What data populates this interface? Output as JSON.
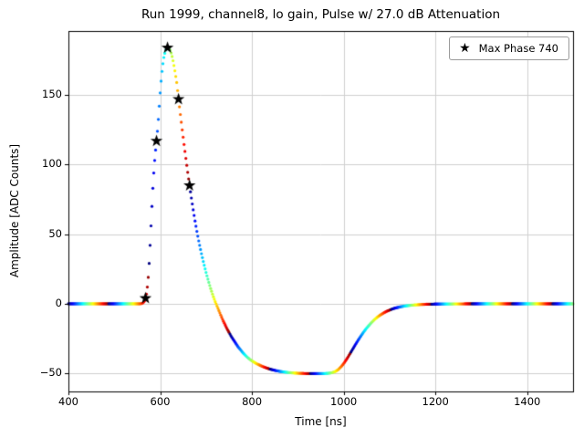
{
  "chart_data": {
    "type": "scatter",
    "title": "Run 1999, channel8, lo gain, Pulse w/ 27.0 dB Attenuation",
    "xlabel": "Time [ns]",
    "ylabel": "Amplitude [ADC Counts]",
    "xlim": [
      400,
      1500
    ],
    "ylim": [
      -63,
      196
    ],
    "xticks": [
      400,
      600,
      800,
      1000,
      1200,
      1400
    ],
    "yticks": [
      -50,
      0,
      50,
      100,
      150
    ],
    "grid": true,
    "grid_color": "#cfcfcf",
    "colormap": "jet-cycling",
    "sample_step_ns": 2,
    "color_cycle_period_samples": 44,
    "legend": [
      {
        "label": "Max Phase 740",
        "marker": "star",
        "color": "#000000"
      }
    ],
    "series": [
      {
        "name": "pulse-waveform",
        "style": "colored-dots",
        "keypoints": [
          [
            400,
            0
          ],
          [
            545,
            0
          ],
          [
            552,
            0
          ],
          [
            556,
            0
          ],
          [
            560,
            0.2
          ],
          [
            563,
            0.8
          ],
          [
            566,
            2
          ],
          [
            568,
            4
          ],
          [
            570,
            7
          ],
          [
            572,
            12
          ],
          [
            574,
            19
          ],
          [
            576,
            29
          ],
          [
            578,
            42
          ],
          [
            580,
            56
          ],
          [
            582,
            70
          ],
          [
            584,
            83
          ],
          [
            586,
            94
          ],
          [
            588,
            103
          ],
          [
            590,
            110.5
          ],
          [
            592,
            117
          ],
          [
            594,
            124
          ],
          [
            596,
            132.5
          ],
          [
            598,
            142
          ],
          [
            600,
            151.5
          ],
          [
            602,
            160
          ],
          [
            604,
            167
          ],
          [
            606,
            172.5
          ],
          [
            608,
            177
          ],
          [
            610,
            180
          ],
          [
            612,
            182.3
          ],
          [
            614,
            183.7
          ],
          [
            616,
            184.4
          ],
          [
            618,
            184.4
          ],
          [
            620,
            183.6
          ],
          [
            622,
            182.2
          ],
          [
            624,
            180.2
          ],
          [
            626,
            177.7
          ],
          [
            628,
            174.7
          ],
          [
            630,
            171.2
          ],
          [
            632,
            167.4
          ],
          [
            634,
            163.3
          ],
          [
            636,
            159
          ],
          [
            638,
            153.2
          ],
          [
            640,
            147
          ],
          [
            644,
            136
          ],
          [
            648,
            125
          ],
          [
            652,
            114.5
          ],
          [
            656,
            104.5
          ],
          [
            660,
            94.5
          ],
          [
            664,
            85
          ],
          [
            668,
            76
          ],
          [
            672,
            67.5
          ],
          [
            676,
            59.5
          ],
          [
            680,
            52
          ],
          [
            685,
            43.5
          ],
          [
            690,
            36
          ],
          [
            695,
            29
          ],
          [
            700,
            22.5
          ],
          [
            705,
            16.5
          ],
          [
            710,
            11
          ],
          [
            715,
            6
          ],
          [
            720,
            1.5
          ],
          [
            725,
            -2.5
          ],
          [
            730,
            -6.5
          ],
          [
            735,
            -10.5
          ],
          [
            740,
            -14
          ],
          [
            745,
            -17.5
          ],
          [
            750,
            -20.5
          ],
          [
            755,
            -23.5
          ],
          [
            760,
            -26
          ],
          [
            765,
            -28.5
          ],
          [
            770,
            -31
          ],
          [
            775,
            -33
          ],
          [
            780,
            -35
          ],
          [
            785,
            -36.8
          ],
          [
            790,
            -38.4
          ],
          [
            795,
            -39.8
          ],
          [
            800,
            -41
          ],
          [
            810,
            -43
          ],
          [
            820,
            -44.6
          ],
          [
            830,
            -45.9
          ],
          [
            840,
            -47
          ],
          [
            850,
            -47.8
          ],
          [
            860,
            -48.5
          ],
          [
            870,
            -49
          ],
          [
            880,
            -49.4
          ],
          [
            890,
            -49.7
          ],
          [
            900,
            -49.9
          ],
          [
            910,
            -50
          ],
          [
            920,
            -50.1
          ],
          [
            940,
            -50.1
          ],
          [
            955,
            -50.1
          ],
          [
            965,
            -50
          ],
          [
            975,
            -49.5
          ],
          [
            982,
            -48.6
          ],
          [
            988,
            -47.3
          ],
          [
            993,
            -45.7
          ],
          [
            998,
            -43.8
          ],
          [
            1003,
            -41.5
          ],
          [
            1008,
            -39
          ],
          [
            1013,
            -36.3
          ],
          [
            1018,
            -33.5
          ],
          [
            1023,
            -30.7
          ],
          [
            1028,
            -28
          ],
          [
            1033,
            -25.4
          ],
          [
            1038,
            -22.9
          ],
          [
            1043,
            -20.5
          ],
          [
            1048,
            -18.3
          ],
          [
            1053,
            -16.3
          ],
          [
            1058,
            -14.4
          ],
          [
            1063,
            -12.7
          ],
          [
            1068,
            -11.1
          ],
          [
            1073,
            -9.7
          ],
          [
            1078,
            -8.5
          ],
          [
            1083,
            -7.4
          ],
          [
            1088,
            -6.4
          ],
          [
            1093,
            -5.5
          ],
          [
            1098,
            -4.8
          ],
          [
            1103,
            -4.1
          ],
          [
            1108,
            -3.5
          ],
          [
            1113,
            -3
          ],
          [
            1118,
            -2.6
          ],
          [
            1123,
            -2.2
          ],
          [
            1128,
            -1.9
          ],
          [
            1133,
            -1.6
          ],
          [
            1140,
            -1.3
          ],
          [
            1150,
            -0.9
          ],
          [
            1160,
            -0.7
          ],
          [
            1170,
            -0.5
          ],
          [
            1180,
            -0.35
          ],
          [
            1190,
            -0.25
          ],
          [
            1200,
            -0.18
          ],
          [
            1220,
            -0.1
          ],
          [
            1250,
            -0.05
          ],
          [
            1300,
            0
          ],
          [
            1400,
            0
          ],
          [
            1500,
            0
          ]
        ]
      },
      {
        "name": "max-phase-markers",
        "style": "star",
        "color": "#000000",
        "points": [
          [
            568,
            4
          ],
          [
            592,
            117
          ],
          [
            616,
            184
          ],
          [
            640,
            147
          ],
          [
            664,
            85
          ]
        ]
      }
    ]
  }
}
